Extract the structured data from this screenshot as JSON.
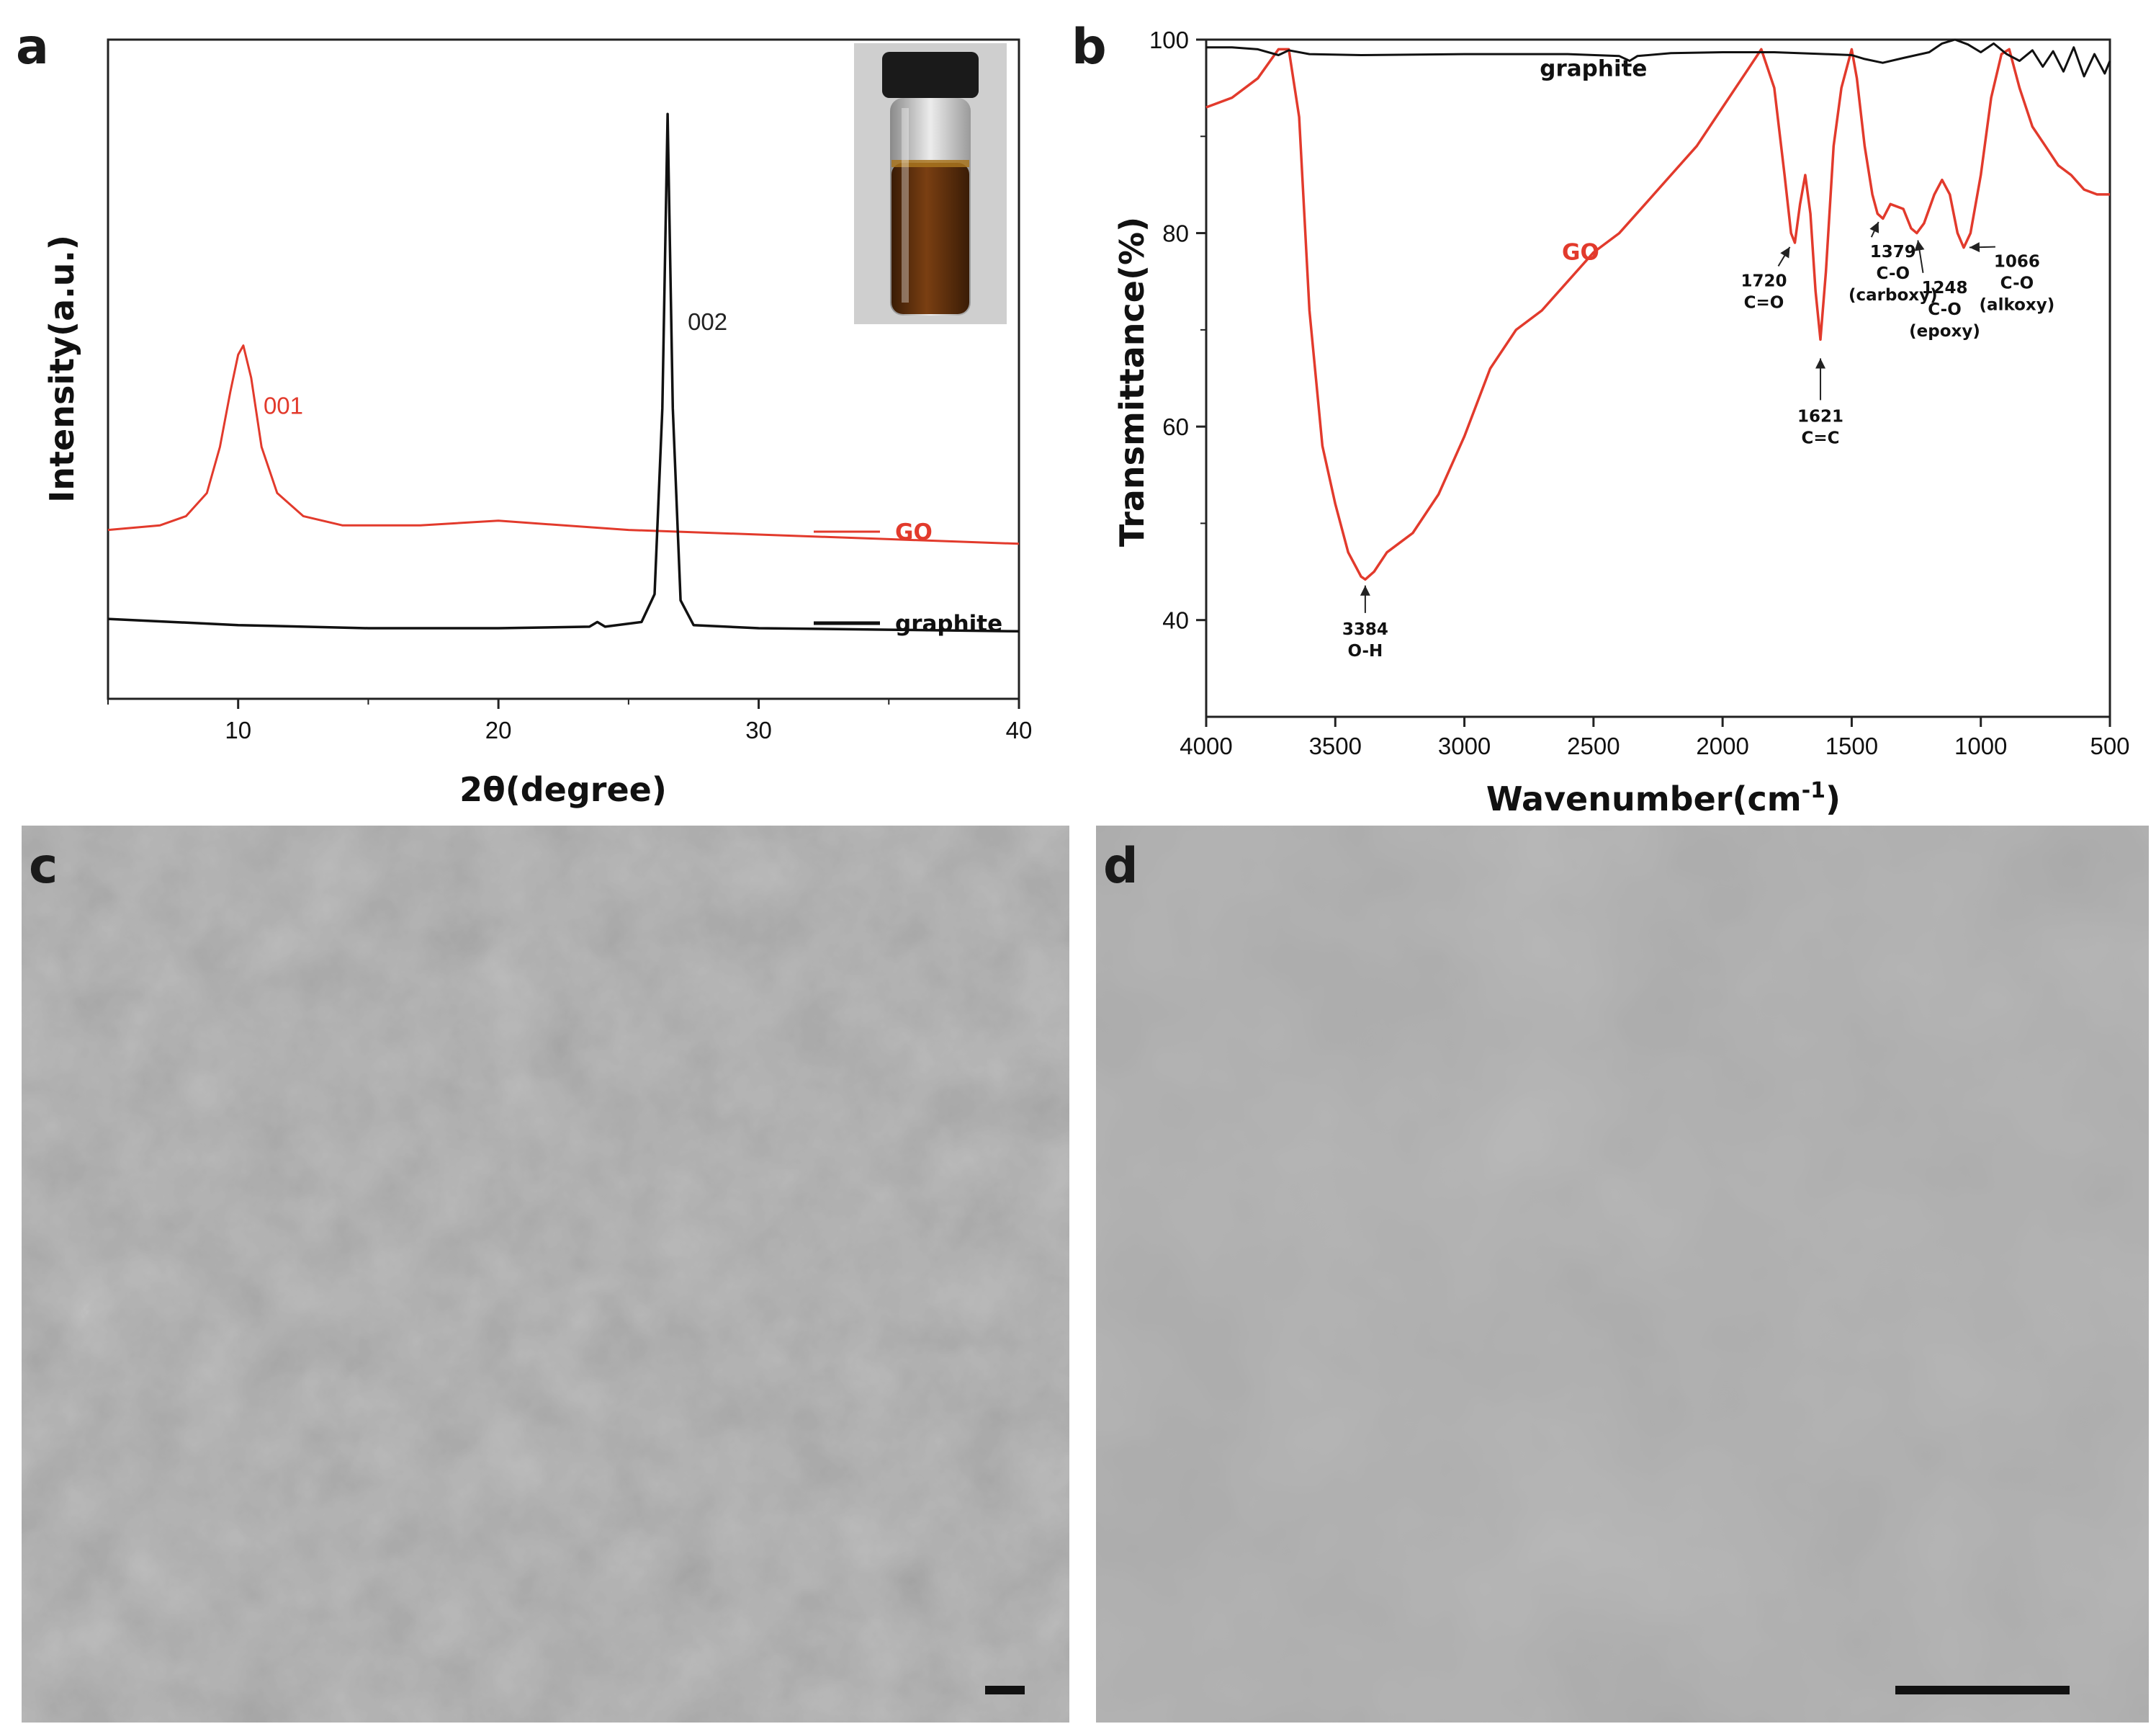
{
  "colors": {
    "go": "#e23a2c",
    "graphite": "#111111",
    "sem_bg": "#6f6f6f"
  },
  "panels": {
    "a": {
      "letter": "a"
    },
    "b": {
      "letter": "b"
    },
    "c": {
      "letter": "c",
      "scale_bar": true
    },
    "d": {
      "letter": "d",
      "scale_bar": true
    }
  },
  "chart_data": [
    {
      "type": "line",
      "panel": "a",
      "xlabel": "2θ(degree)",
      "ylabel": "Intensity(a.u.)",
      "xlim": [
        5,
        40
      ],
      "x_ticks": [
        10,
        20,
        30,
        40
      ],
      "y_ticks_shown": false,
      "legend": {
        "placement": "right",
        "entries": [
          "GO",
          "graphite"
        ]
      },
      "annotations": [
        {
          "text": "001",
          "x": 10.2,
          "series": "GO"
        },
        {
          "text": "002",
          "x": 26.5,
          "series": "graphite"
        }
      ],
      "inset": "photo-of-GO-dispersion-vial",
      "series": [
        {
          "name": "GO",
          "color": "#e23a2c",
          "x": [
            5,
            7,
            8,
            8.8,
            9.3,
            9.7,
            10.0,
            10.2,
            10.5,
            10.9,
            11.5,
            12.5,
            14,
            17,
            20,
            25,
            30,
            35,
            40
          ],
          "y": [
            4.2,
            4.3,
            4.5,
            5.0,
            6.0,
            7.2,
            8.0,
            8.2,
            7.5,
            6.0,
            5.0,
            4.5,
            4.3,
            4.3,
            4.4,
            4.2,
            4.1,
            4.0,
            3.9
          ]
        },
        {
          "name": "graphite",
          "color": "#111111",
          "x": [
            5,
            10,
            15,
            20,
            23.5,
            23.8,
            24.1,
            25.5,
            26.0,
            26.3,
            26.5,
            26.7,
            27.0,
            27.5,
            30,
            35,
            40
          ],
          "y": [
            1.2,
            1.0,
            0.9,
            0.9,
            0.95,
            1.1,
            0.95,
            1.1,
            2.0,
            8.0,
            17.5,
            8.0,
            1.8,
            1.0,
            0.9,
            0.85,
            0.8
          ]
        }
      ]
    },
    {
      "type": "line",
      "panel": "b",
      "xlabel": "Wavenumber(cm",
      "xlabel_sup": "-1",
      "xlabel_close": ")",
      "ylabel": "Transmittance(%)",
      "xlim": [
        4000,
        500
      ],
      "ylim": [
        30,
        100
      ],
      "x_ticks": [
        4000,
        3500,
        3000,
        2500,
        2000,
        1500,
        1000,
        500
      ],
      "y_ticks": [
        40,
        60,
        80,
        100
      ],
      "series": [
        {
          "name": "GO",
          "color": "#e23a2c",
          "x": [
            4000,
            3900,
            3800,
            3720,
            3680,
            3640,
            3600,
            3550,
            3500,
            3450,
            3400,
            3384,
            3350,
            3300,
            3250,
            3200,
            3100,
            3000,
            2900,
            2800,
            2700,
            2600,
            2500,
            2400,
            2300,
            2200,
            2100,
            2000,
            1900,
            1850,
            1800,
            1760,
            1735,
            1720,
            1700,
            1680,
            1660,
            1640,
            1621,
            1600,
            1570,
            1540,
            1500,
            1480,
            1450,
            1420,
            1400,
            1379,
            1350,
            1300,
            1270,
            1248,
            1220,
            1180,
            1150,
            1120,
            1090,
            1066,
            1040,
            1000,
            960,
            920,
            890,
            850,
            800,
            750,
            700,
            650,
            600,
            550,
            500
          ],
          "y": [
            93,
            94,
            96,
            99,
            99,
            92,
            72,
            58,
            52,
            47,
            44.5,
            44.2,
            45,
            47,
            48,
            49,
            53,
            59,
            66,
            70,
            72,
            75,
            78,
            80,
            83,
            86,
            89,
            93,
            97,
            99,
            95,
            86,
            80,
            79,
            83,
            86,
            82,
            74,
            69,
            76,
            89,
            95,
            99,
            96,
            89,
            84,
            82,
            81.5,
            83,
            82.5,
            80.5,
            80,
            81,
            84,
            85.5,
            84,
            80,
            78.5,
            80,
            86,
            94,
            98.5,
            99,
            95,
            91,
            89,
            87,
            86,
            84.5,
            84,
            84
          ]
        },
        {
          "name": "graphite",
          "color": "#111111",
          "x": [
            4000,
            3900,
            3800,
            3720,
            3680,
            3600,
            3400,
            3000,
            2600,
            2400,
            2360,
            2330,
            2200,
            2000,
            1800,
            1600,
            1500,
            1450,
            1380,
            1300,
            1200,
            1150,
            1100,
            1050,
            1000,
            950,
            900,
            850,
            800,
            760,
            720,
            680,
            640,
            600,
            560,
            520,
            500
          ],
          "y": [
            99.2,
            99.2,
            99.0,
            98.4,
            98.9,
            98.5,
            98.4,
            98.5,
            98.5,
            98.3,
            97.8,
            98.3,
            98.6,
            98.7,
            98.7,
            98.5,
            98.4,
            98.0,
            97.6,
            98.1,
            98.7,
            99.6,
            100,
            99.5,
            98.7,
            99.6,
            98.5,
            97.8,
            98.9,
            97.2,
            98.8,
            96.7,
            99.2,
            96.2,
            98.5,
            96.5,
            97.8
          ]
        }
      ],
      "series_labels": [
        {
          "text": "graphite",
          "x": 2500,
          "y": 97
        },
        {
          "text": "GO",
          "x": 2550,
          "y": 78
        }
      ],
      "annotations": [
        {
          "lines": [
            "3384",
            "O-H"
          ],
          "x": 3384,
          "y": 44.2,
          "label_x": 3384,
          "label_y": 38.5,
          "arrow": "up"
        },
        {
          "lines": [
            "1720",
            "C=O"
          ],
          "x": 1730,
          "y": 79,
          "label_x": 1840,
          "label_y": 74.5,
          "arrow": "up-right"
        },
        {
          "lines": [
            "1621",
            "C=C"
          ],
          "x": 1621,
          "y": 68,
          "label_x": 1621,
          "label_y": 60.5,
          "arrow": "up"
        },
        {
          "lines": [
            "1379",
            "C-O",
            "(carboxy)"
          ],
          "x": 1390,
          "y": 81.5,
          "label_x": 1340,
          "label_y": 77.5,
          "arrow": "up-left"
        },
        {
          "lines": [
            "1248",
            "C-O",
            "(epoxy)"
          ],
          "x": 1248,
          "y": 80,
          "label_x": 1140,
          "label_y": 73.8,
          "arrow": "up-left"
        },
        {
          "lines": [
            "1066",
            "C-O",
            "(alkoxy)"
          ],
          "x": 1066,
          "y": 78.5,
          "label_x": 860,
          "label_y": 76.5,
          "arrow": "up-left"
        }
      ]
    }
  ]
}
